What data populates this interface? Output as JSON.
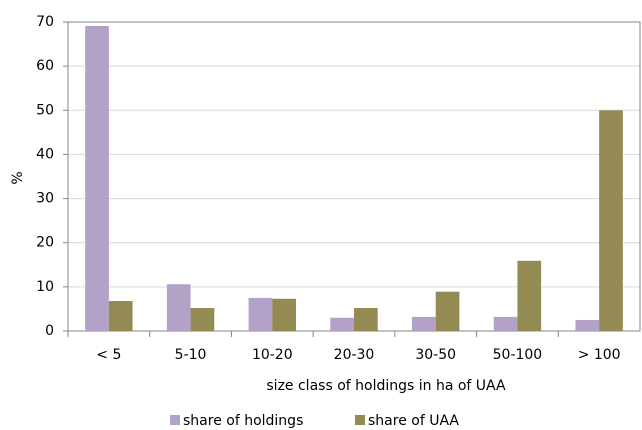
{
  "chart_data": {
    "type": "bar",
    "x_label": "size class of holdings in ha of UAA",
    "y_label": "%",
    "categories": [
      "< 5",
      "5-10",
      "10-20",
      "20-30",
      "30-50",
      "50-100",
      "> 100"
    ],
    "series": [
      {
        "name": "share of holdings",
        "color": "#b3a2c7",
        "values": [
          69.1,
          10.6,
          7.5,
          3,
          3.2,
          3.2,
          2.5
        ]
      },
      {
        "name": "share of UAA",
        "color": "#948a54",
        "values": [
          6.8,
          5.2,
          7.3,
          5.2,
          8.9,
          15.9,
          50
        ]
      }
    ],
    "ylim": [
      0,
      70
    ],
    "yticks": [
      0,
      10,
      20,
      30,
      40,
      50,
      60,
      70
    ],
    "grid": true,
    "legend": "bottom"
  }
}
